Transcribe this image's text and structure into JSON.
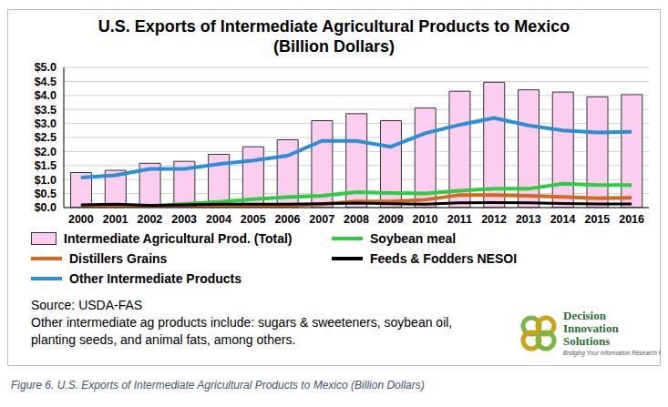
{
  "chart_data": {
    "type": "bar",
    "title": "U.S. Exports of Intermediate Agricultural Products to Mexico",
    "subtitle": "(Billion Dollars)",
    "categories": [
      "2000",
      "2001",
      "2002",
      "2003",
      "2004",
      "2005",
      "2006",
      "2007",
      "2008",
      "2009",
      "2010",
      "2011",
      "2012",
      "2013",
      "2014",
      "2015",
      "2016"
    ],
    "series": [
      {
        "name": "Intermediate Agricultural Prod. (Total)",
        "type": "bar",
        "color": "#fbcdee",
        "values": [
          1.25,
          1.33,
          1.58,
          1.65,
          1.9,
          2.17,
          2.42,
          3.1,
          3.35,
          3.1,
          3.55,
          4.15,
          4.47,
          4.2,
          4.12,
          3.95,
          4.03
        ]
      },
      {
        "name": "Soybean meal",
        "type": "line",
        "color": "#2ecc40",
        "values": [
          0.05,
          0.07,
          0.05,
          0.13,
          0.2,
          0.3,
          0.37,
          0.42,
          0.55,
          0.52,
          0.5,
          0.6,
          0.67,
          0.67,
          0.85,
          0.8,
          0.8
        ]
      },
      {
        "name": "Distillers Grains",
        "type": "line",
        "color": "#d2691e",
        "values": [
          0.02,
          0.03,
          0.03,
          0.03,
          0.05,
          0.05,
          0.07,
          0.12,
          0.22,
          0.22,
          0.28,
          0.45,
          0.45,
          0.42,
          0.38,
          0.33,
          0.35
        ]
      },
      {
        "name": "Feeds & Fodders NESOI",
        "type": "line",
        "color": "#000000",
        "values": [
          0.1,
          0.12,
          0.08,
          0.1,
          0.12,
          0.12,
          0.12,
          0.14,
          0.16,
          0.14,
          0.12,
          0.17,
          0.18,
          0.17,
          0.15,
          0.13,
          0.13
        ]
      },
      {
        "name": "Other Intermediate Products",
        "type": "line",
        "color": "#2b8fd6",
        "values": [
          1.07,
          1.15,
          1.38,
          1.38,
          1.55,
          1.68,
          1.85,
          2.38,
          2.38,
          2.17,
          2.65,
          2.95,
          3.2,
          2.93,
          2.75,
          2.68,
          2.7
        ]
      }
    ],
    "ylim": [
      0,
      5
    ],
    "yticks": [
      {
        "value": 0,
        "label": "$0.0"
      },
      {
        "value": 0.5,
        "label": "$0.5"
      },
      {
        "value": 1,
        "label": "$1.0"
      },
      {
        "value": 1.5,
        "label": "$1.5"
      },
      {
        "value": 2,
        "label": "$2.0"
      },
      {
        "value": 2.5,
        "label": "$2.5"
      },
      {
        "value": 3,
        "label": "$3.0"
      },
      {
        "value": 3.5,
        "label": "$3.5"
      },
      {
        "value": 4,
        "label": "$4.0"
      },
      {
        "value": 4.5,
        "label": "$4.5"
      },
      {
        "value": 5,
        "label": "$5.0"
      }
    ],
    "grid": true,
    "legend": "bottom",
    "source": "Source: USDA-FAS",
    "note": "Other intermediate ag products include: sugars & sweeteners, soybean oil, planting seeds, and animal fats, among others.",
    "logo_name": [
      "Decision",
      "Innovation",
      "Solutions"
    ],
    "logo_tagline": "Bridging Your Information Research Needs",
    "caption": "Figure 6. U.S. Exports of Intermediate Agricultural Products to Mexico (Billion Dollars)"
  }
}
